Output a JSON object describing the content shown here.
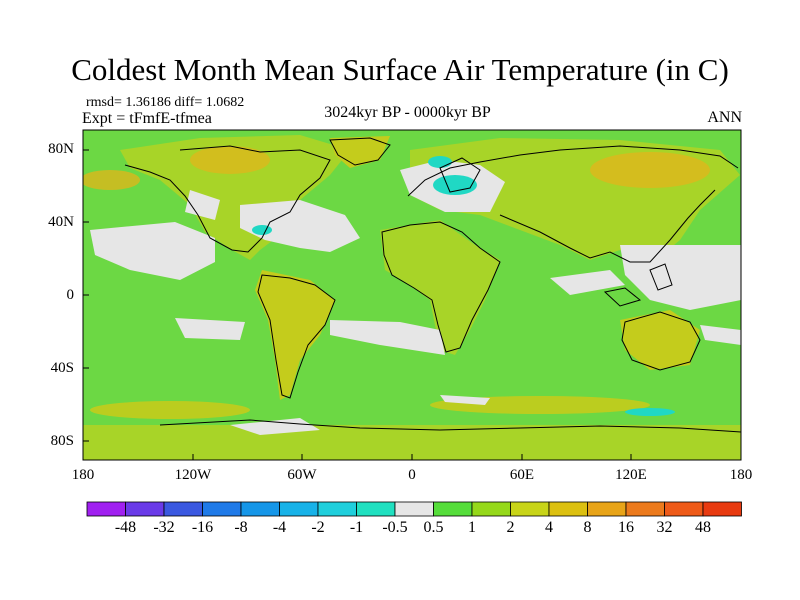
{
  "title": "Coldest Month Mean Surface Air Temperature (in C)",
  "stats": "rmsd= 1.36186  diff= 1.0682",
  "experiment": "Expt = tFmfE-tfmea",
  "period": "3024kyr BP - 0000kyr BP",
  "season": "ANN",
  "lat_ticks": [
    "80N",
    "40N",
    "0",
    "40S",
    "80S"
  ],
  "lon_ticks": [
    "180",
    "120W",
    "60W",
    "0",
    "60E",
    "120E",
    "180"
  ],
  "colorbar": {
    "labels": [
      "-48",
      "-32",
      "-16",
      "-8",
      "-4",
      "-2",
      "-1",
      "-0.5",
      "0.5",
      "1",
      "2",
      "4",
      "8",
      "16",
      "32",
      "48"
    ],
    "colors": [
      "#a020f0",
      "#6a3ae8",
      "#3a58e0",
      "#1f7ae8",
      "#1596e8",
      "#17b2e8",
      "#1fcfdc",
      "#20e0c0",
      "#e6e6e6",
      "#55dd3a",
      "#95d81a",
      "#c8d418",
      "#dcc010",
      "#e8a418",
      "#ec7a1c",
      "#ee5a18",
      "#e83a10"
    ]
  },
  "map_colors": {
    "ocean_base": "#6cd844",
    "land_base": "#a8d428",
    "warm": "#c4cc1c",
    "warmer": "#dcb81c",
    "near_zero": "#e6e6e6",
    "cool": "#20d8c4",
    "coast": "#000000"
  }
}
